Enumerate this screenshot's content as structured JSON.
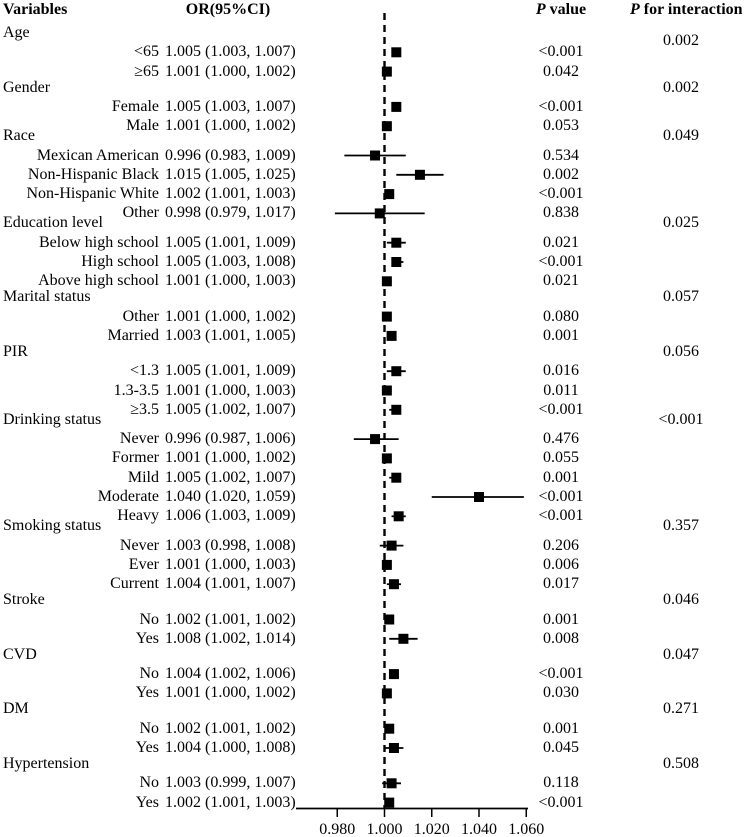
{
  "figure": {
    "columns": {
      "variables": "Variables",
      "or": "OR(95%CI)",
      "p_italic": "P",
      "p_rest": " value",
      "pint_italic": "P",
      "pint_rest": " for interaction"
    }
  },
  "chart_data": {
    "type": "forest",
    "title": "",
    "columns": [
      "Variables",
      "OR(95%CI)",
      "P value",
      "P for interaction"
    ],
    "x_axis": {
      "min": 0.98,
      "max": 1.06,
      "ticks": [
        "0.980",
        "1.000",
        "1.020",
        "1.040",
        "1.060"
      ],
      "tick_values": [
        0.98,
        1.0,
        1.02,
        1.04,
        1.06
      ],
      "reference_line": 1.0
    },
    "rows": [
      {
        "type": "group",
        "label": "Age",
        "p_interaction": "0.002"
      },
      {
        "type": "item",
        "label": "<65",
        "or_text": "1.005 (1.003, 1.007)",
        "or": 1.005,
        "lo": 1.003,
        "hi": 1.007,
        "p": "<0.001"
      },
      {
        "type": "item",
        "label": "≥65",
        "or_text": "1.001 (1.000, 1.002)",
        "or": 1.001,
        "lo": 1.0,
        "hi": 1.002,
        "p": "0.042"
      },
      {
        "type": "group",
        "label": "Gender",
        "p_interaction": "0.002"
      },
      {
        "type": "item",
        "label": "Female",
        "or_text": "1.005 (1.003, 1.007)",
        "or": 1.005,
        "lo": 1.003,
        "hi": 1.007,
        "p": "<0.001"
      },
      {
        "type": "item",
        "label": "Male",
        "or_text": "1.001 (1.000, 1.002)",
        "or": 1.001,
        "lo": 1.0,
        "hi": 1.002,
        "p": "0.053"
      },
      {
        "type": "group",
        "label": "Race",
        "overlap": true,
        "p_interaction": "0.049"
      },
      {
        "type": "item",
        "label": "Mexican American",
        "or_text": "0.996 (0.983, 1.009)",
        "or": 0.996,
        "lo": 0.983,
        "hi": 1.009,
        "p": "0.534"
      },
      {
        "type": "item",
        "label": "Non-Hispanic Black",
        "or_text": "1.015 (1.005, 1.025)",
        "or": 1.015,
        "lo": 1.005,
        "hi": 1.025,
        "p": "0.002"
      },
      {
        "type": "item",
        "label": "Non-Hispanic White",
        "or_text": "1.002 (1.001, 1.003)",
        "or": 1.002,
        "lo": 1.001,
        "hi": 1.003,
        "p": "<0.001"
      },
      {
        "type": "item",
        "label": "Other",
        "or_text": "0.998 (0.979, 1.017)",
        "or": 0.998,
        "lo": 0.979,
        "hi": 1.017,
        "p": "0.838"
      },
      {
        "type": "group",
        "label": "Education level",
        "overlap": true,
        "p_interaction": "0.025"
      },
      {
        "type": "item",
        "label": "Below high school",
        "or_text": "1.005 (1.001, 1.009)",
        "or": 1.005,
        "lo": 1.001,
        "hi": 1.009,
        "p": "0.021"
      },
      {
        "type": "item",
        "label": "High school",
        "or_text": "1.005 (1.003, 1.008)",
        "or": 1.005,
        "lo": 1.003,
        "hi": 1.008,
        "p": "<0.001"
      },
      {
        "type": "item",
        "label": "Above high school",
        "or_text": "1.001 (1.000, 1.003)",
        "or": 1.001,
        "lo": 1.0,
        "hi": 1.003,
        "p": "0.021"
      },
      {
        "type": "group",
        "label": "Marital status",
        "p_interaction": "0.057"
      },
      {
        "type": "item",
        "label": "Other",
        "or_text": "1.001 (1.000, 1.002)",
        "or": 1.001,
        "lo": 1.0,
        "hi": 1.002,
        "p": "0.080"
      },
      {
        "type": "item",
        "label": "Married",
        "or_text": "1.003 (1.001, 1.005)",
        "or": 1.003,
        "lo": 1.001,
        "hi": 1.005,
        "p": "0.001"
      },
      {
        "type": "group",
        "label": "PIR",
        "p_interaction": "0.056"
      },
      {
        "type": "item",
        "label": "<1.3",
        "or_text": "1.005 (1.001, 1.009)",
        "or": 1.005,
        "lo": 1.001,
        "hi": 1.009,
        "p": "0.016"
      },
      {
        "type": "item",
        "label": "1.3-3.5",
        "or_text": "1.001 (1.000, 1.003)",
        "or": 1.001,
        "lo": 1.0,
        "hi": 1.003,
        "p": "0.011"
      },
      {
        "type": "item",
        "label": "≥3.5",
        "or_text": "1.005 (1.002, 1.007)",
        "or": 1.005,
        "lo": 1.002,
        "hi": 1.007,
        "p": "<0.001"
      },
      {
        "type": "group",
        "label": "Drinking status",
        "overlap": true,
        "p_interaction": "<0.001"
      },
      {
        "type": "item",
        "label": "Never",
        "or_text": "0.996 (0.987, 1.006)",
        "or": 0.996,
        "lo": 0.987,
        "hi": 1.006,
        "p": "0.476"
      },
      {
        "type": "item",
        "label": "Former",
        "or_text": "1.001 (1.000, 1.002)",
        "or": 1.001,
        "lo": 1.0,
        "hi": 1.002,
        "p": "0.055"
      },
      {
        "type": "item",
        "label": "Mild",
        "or_text": "1.005 (1.002, 1.007)",
        "or": 1.005,
        "lo": 1.002,
        "hi": 1.007,
        "p": "0.001"
      },
      {
        "type": "item",
        "label": "Moderate",
        "or_text": "1.040 (1.020, 1.059)",
        "or": 1.04,
        "lo": 1.02,
        "hi": 1.059,
        "p": "<0.001"
      },
      {
        "type": "item",
        "label": "Heavy",
        "or_text": "1.006 (1.003, 1.009)",
        "or": 1.006,
        "lo": 1.003,
        "hi": 1.009,
        "p": "<0.001"
      },
      {
        "type": "group",
        "label": "Smoking status",
        "overlap": true,
        "p_interaction": "0.357"
      },
      {
        "type": "item",
        "label": "Never",
        "or_text": "1.003 (0.998, 1.008)",
        "or": 1.003,
        "lo": 0.998,
        "hi": 1.008,
        "p": "0.206"
      },
      {
        "type": "item",
        "label": "Ever",
        "or_text": "1.001 (1.000, 1.003)",
        "or": 1.001,
        "lo": 1.0,
        "hi": 1.003,
        "p": "0.006"
      },
      {
        "type": "item",
        "label": "Current",
        "or_text": "1.004 (1.001, 1.007)",
        "or": 1.004,
        "lo": 1.001,
        "hi": 1.007,
        "p": "0.017"
      },
      {
        "type": "group",
        "label": "Stroke",
        "p_interaction": "0.046"
      },
      {
        "type": "item",
        "label": "No",
        "or_text": "1.002 (1.001, 1.002)",
        "or": 1.002,
        "lo": 1.001,
        "hi": 1.002,
        "p": "0.001"
      },
      {
        "type": "item",
        "label": "Yes",
        "or_text": "1.008 (1.002, 1.014)",
        "or": 1.008,
        "lo": 1.002,
        "hi": 1.014,
        "p": "0.008"
      },
      {
        "type": "group",
        "label": "CVD",
        "p_interaction": "0.047"
      },
      {
        "type": "item",
        "label": "No",
        "or_text": "1.004 (1.002, 1.006)",
        "or": 1.004,
        "lo": 1.002,
        "hi": 1.006,
        "p": "<0.001"
      },
      {
        "type": "item",
        "label": "Yes",
        "or_text": "1.001 (1.000, 1.002)",
        "or": 1.001,
        "lo": 1.0,
        "hi": 1.002,
        "p": "0.030"
      },
      {
        "type": "group",
        "label": "DM",
        "p_interaction": "0.271"
      },
      {
        "type": "item",
        "label": "No",
        "or_text": "1.002 (1.001, 1.002)",
        "or": 1.002,
        "lo": 1.001,
        "hi": 1.002,
        "p": "0.001"
      },
      {
        "type": "item",
        "label": "Yes",
        "or_text": "1.004 (1.000, 1.008)",
        "or": 1.004,
        "lo": 1.0,
        "hi": 1.008,
        "p": "0.045"
      },
      {
        "type": "group",
        "label": "Hypertension",
        "p_interaction": "0.508"
      },
      {
        "type": "item",
        "label": "No",
        "or_text": "1.003 (0.999, 1.007)",
        "or": 1.003,
        "lo": 0.999,
        "hi": 1.007,
        "p": "0.118"
      },
      {
        "type": "item",
        "label": "Yes",
        "or_text": "1.002 (1.001, 1.003)",
        "or": 1.002,
        "lo": 1.001,
        "hi": 1.003,
        "p": "<0.001"
      }
    ],
    "marker_color": "#000000",
    "background_color": "#ffffff"
  }
}
